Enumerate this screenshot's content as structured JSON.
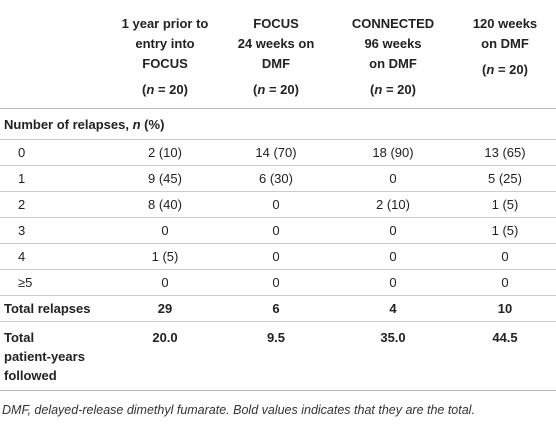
{
  "table": {
    "columns": [
      {
        "lines": [
          "1 year prior to",
          "entry into",
          "FOCUS"
        ],
        "count": [
          "(",
          "n",
          " = 20)"
        ]
      },
      {
        "lines": [
          "FOCUS",
          "24 weeks on",
          "DMF"
        ],
        "count": [
          "(",
          "n",
          " = 20)"
        ]
      },
      {
        "lines": [
          "CONNECTED",
          "96 weeks",
          "on DMF"
        ],
        "count": [
          "(",
          "n",
          " = 20)"
        ]
      },
      {
        "lines": [
          "120 weeks",
          "on DMF"
        ],
        "count": [
          "(",
          "n",
          " = 20)"
        ]
      }
    ],
    "section": [
      "Number of relapses, ",
      "n",
      " (%)"
    ],
    "rows": [
      {
        "label": [
          "0"
        ],
        "values": [
          "2 (10)",
          "14 (70)",
          "18 (90)",
          "13 (65)"
        ],
        "bold": false
      },
      {
        "label": [
          "1"
        ],
        "values": [
          "9 (45)",
          "6 (30)",
          "0",
          "5 (25)"
        ],
        "bold": false
      },
      {
        "label": [
          "2"
        ],
        "values": [
          "8 (40)",
          "0",
          "2 (10)",
          "1 (5)"
        ],
        "bold": false
      },
      {
        "label": [
          "3"
        ],
        "values": [
          "0",
          "0",
          "0",
          "1 (5)"
        ],
        "bold": false
      },
      {
        "label": [
          "4"
        ],
        "values": [
          "1 (5)",
          "0",
          "0",
          "0"
        ],
        "bold": false
      },
      {
        "label": [
          "≥5"
        ],
        "values": [
          "0",
          "0",
          "0",
          "0"
        ],
        "bold": false
      },
      {
        "label": [
          "Total relapses"
        ],
        "values": [
          "29",
          "6",
          "4",
          "10"
        ],
        "bold": true
      },
      {
        "label": [
          "Total",
          "patient-years",
          "followed"
        ],
        "values": [
          "20.0",
          "9.5",
          "35.0",
          "44.5"
        ],
        "bold": true
      }
    ],
    "footnote": "DMF, delayed-release dimethyl fumarate. Bold values indicates that they are the total."
  }
}
